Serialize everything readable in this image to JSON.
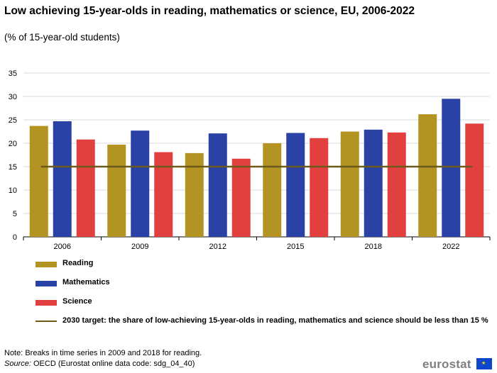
{
  "header": {
    "title": "Low achieving 15-year-olds in reading, mathematics or science, EU, 2006-2022",
    "subtitle": "(% of 15-year-old students)"
  },
  "chart_data": {
    "type": "bar",
    "categories": [
      "2006",
      "2009",
      "2012",
      "2015",
      "2018",
      "2022"
    ],
    "series": [
      {
        "name": "Reading",
        "color": "#b39422",
        "values": [
          23.7,
          19.7,
          17.9,
          20.0,
          22.5,
          26.2
        ]
      },
      {
        "name": "Mathematics",
        "color": "#2a41a6",
        "values": [
          24.7,
          22.7,
          22.1,
          22.2,
          22.9,
          29.5
        ]
      },
      {
        "name": "Science",
        "color": "#e1403f",
        "values": [
          20.8,
          18.1,
          16.7,
          21.1,
          22.3,
          24.2
        ]
      }
    ],
    "target": {
      "name": "2030 target: the share of low-achieving 15-year-olds in reading, mathematics and science should be less than 15 %",
      "value": 15,
      "color": "#6b5a1b"
    },
    "ylim": [
      0,
      35
    ],
    "yticks": [
      0,
      5,
      10,
      15,
      20,
      25,
      30,
      35
    ],
    "grid": true,
    "legend": "bottom"
  },
  "footer": {
    "note": "Note: Breaks in time series in 2009 and 2018 for reading.",
    "source_label": "Source:",
    "source_text": " OECD (Eurostat online data code: sdg_04_40)",
    "logo_text": "eurostat"
  }
}
